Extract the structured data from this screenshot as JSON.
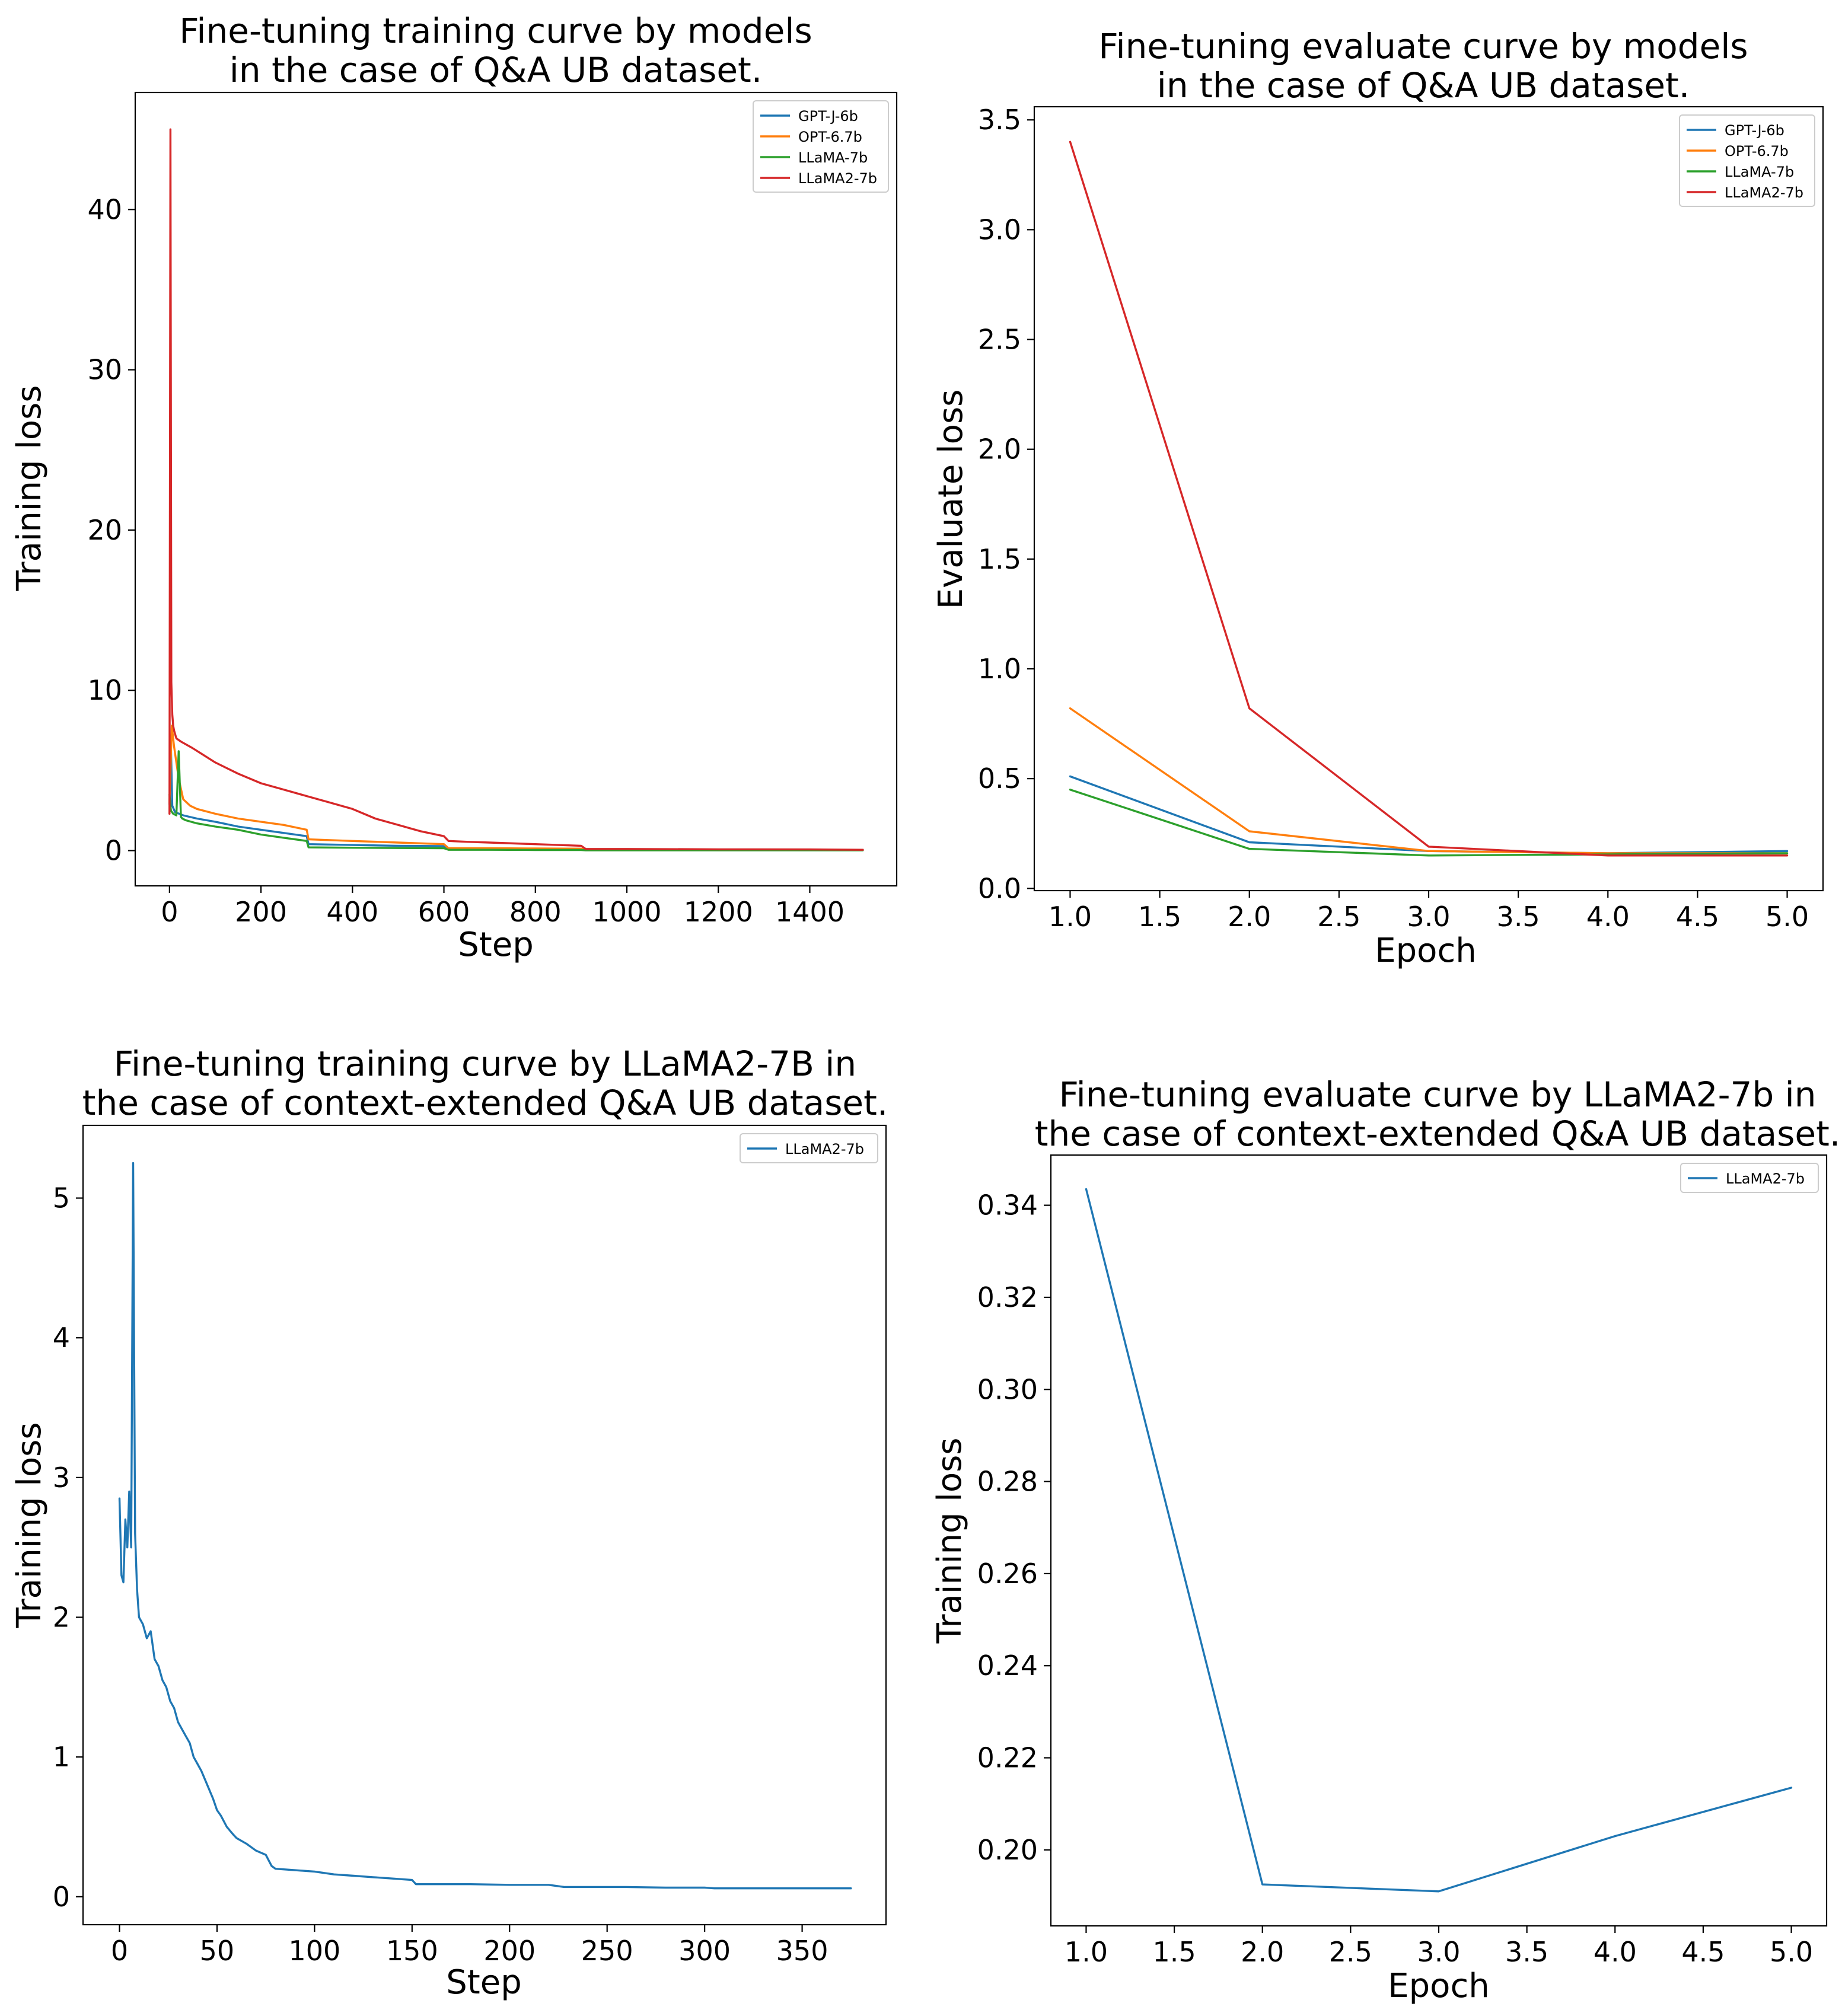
{
  "colors": {
    "GPT-J-6b": "#1f77b4",
    "OPT-6.7b": "#ff7f0e",
    "LLaMA-7b": "#2ca02c",
    "LLaMA2-7b": "#d62728",
    "single": "#1f77b4"
  },
  "chart_data": [
    {
      "id": "train_models",
      "type": "line",
      "title": [
        "Fine-tuning training curve by models",
        "in the case of Q&A UB dataset."
      ],
      "xlabel": "Step",
      "ylabel": "Training loss",
      "xlim": [
        -75,
        1590
      ],
      "ylim": [
        -2.2,
        47.3
      ],
      "xticks": [
        0,
        200,
        400,
        600,
        800,
        1000,
        1200,
        1400
      ],
      "yticks": [
        0,
        10,
        20,
        30,
        40
      ],
      "legend": "top-right",
      "series": [
        {
          "name": "GPT-J-6b",
          "x": [
            0,
            3,
            6,
            12,
            30,
            60,
            100,
            150,
            200,
            250,
            300,
            304,
            400,
            500,
            600,
            610,
            700,
            800,
            900,
            910,
            1000,
            1200,
            1400,
            1516
          ],
          "y": [
            2.9,
            6.5,
            2.8,
            2.4,
            2.2,
            2.0,
            1.8,
            1.5,
            1.3,
            1.1,
            0.9,
            0.4,
            0.35,
            0.3,
            0.28,
            0.12,
            0.12,
            0.11,
            0.11,
            0.05,
            0.05,
            0.05,
            0.05,
            0.05
          ]
        },
        {
          "name": "OPT-6.7b",
          "x": [
            0,
            5,
            10,
            20,
            30,
            45,
            60,
            100,
            150,
            200,
            250,
            300,
            304,
            400,
            500,
            600,
            610,
            700,
            800,
            900,
            910,
            1000,
            1200,
            1400,
            1516
          ],
          "y": [
            3.0,
            7.8,
            6.5,
            4.5,
            3.2,
            2.8,
            2.6,
            2.3,
            2.0,
            1.8,
            1.6,
            1.3,
            0.7,
            0.6,
            0.5,
            0.4,
            0.15,
            0.15,
            0.13,
            0.12,
            0.06,
            0.06,
            0.05,
            0.05,
            0.05
          ]
        },
        {
          "name": "LLaMA-7b",
          "x": [
            0,
            3,
            8,
            15,
            20,
            25,
            28,
            35,
            60,
            100,
            150,
            200,
            250,
            300,
            304,
            400,
            500,
            600,
            610,
            700,
            800,
            900,
            910,
            1000,
            1200,
            1400,
            1516
          ],
          "y": [
            3.5,
            2.5,
            2.3,
            2.2,
            6.2,
            2.1,
            2.0,
            1.9,
            1.7,
            1.5,
            1.3,
            1.0,
            0.8,
            0.6,
            0.2,
            0.18,
            0.16,
            0.15,
            0.05,
            0.05,
            0.04,
            0.04,
            0.02,
            0.02,
            0.02,
            0.02,
            0.02
          ]
        },
        {
          "name": "LLaMA2-7b",
          "x": [
            0,
            2,
            4,
            6,
            8,
            10,
            15,
            25,
            50,
            100,
            150,
            200,
            250,
            300,
            350,
            400,
            450,
            500,
            550,
            600,
            610,
            650,
            700,
            800,
            900,
            910,
            1000,
            1200,
            1400,
            1516
          ],
          "y": [
            2.3,
            45.0,
            10.5,
            8.5,
            7.8,
            7.5,
            7.0,
            6.8,
            6.4,
            5.5,
            4.8,
            4.2,
            3.8,
            3.4,
            3.0,
            2.6,
            2.0,
            1.6,
            1.2,
            0.9,
            0.6,
            0.55,
            0.5,
            0.4,
            0.3,
            0.1,
            0.1,
            0.08,
            0.07,
            0.05
          ]
        }
      ]
    },
    {
      "id": "eval_models",
      "type": "line",
      "title": [
        "Fine-tuning evaluate curve by models",
        "in the case of Q&A UB dataset."
      ],
      "xlabel": "Epoch",
      "ylabel": "Evaluate loss",
      "xlim": [
        0.8,
        5.2
      ],
      "ylim": [
        -0.01,
        3.56
      ],
      "xticks": [
        1.0,
        1.5,
        2.0,
        2.5,
        3.0,
        3.5,
        4.0,
        4.5,
        5.0
      ],
      "yticks": [
        0.0,
        0.5,
        1.0,
        1.5,
        2.0,
        2.5,
        3.0,
        3.5
      ],
      "legend": "top-right",
      "series": [
        {
          "name": "GPT-J-6b",
          "x": [
            1,
            2,
            3,
            4,
            5
          ],
          "y": [
            0.51,
            0.21,
            0.17,
            0.16,
            0.17
          ]
        },
        {
          "name": "OPT-6.7b",
          "x": [
            1,
            2,
            3,
            4,
            5
          ],
          "y": [
            0.82,
            0.26,
            0.17,
            0.16,
            0.16
          ]
        },
        {
          "name": "LLaMA-7b",
          "x": [
            1,
            2,
            3,
            4,
            5
          ],
          "y": [
            0.45,
            0.18,
            0.15,
            0.155,
            0.16
          ]
        },
        {
          "name": "LLaMA2-7b",
          "x": [
            1,
            2,
            3,
            4,
            5
          ],
          "y": [
            3.4,
            0.82,
            0.19,
            0.15,
            0.15
          ]
        }
      ]
    },
    {
      "id": "train_ctx",
      "type": "line",
      "title": [
        "Fine-tuning training curve by LLaMA2-7B in",
        "the case of context-extended Q&A UB dataset."
      ],
      "xlabel": "Step",
      "ylabel": "Training loss",
      "xlim": [
        -18.7,
        393
      ],
      "ylim": [
        -0.2,
        5.52
      ],
      "xticks": [
        0,
        50,
        100,
        150,
        200,
        250,
        300,
        350
      ],
      "yticks": [
        0,
        1,
        2,
        3,
        4,
        5
      ],
      "legend": "top-right",
      "series": [
        {
          "name": "LLaMA2-7b",
          "x": [
            0,
            1,
            2,
            3,
            4,
            5,
            6,
            7,
            8,
            9,
            10,
            12,
            14,
            16,
            18,
            20,
            22,
            24,
            26,
            28,
            30,
            32,
            34,
            36,
            38,
            40,
            42,
            45,
            48,
            50,
            52,
            55,
            58,
            60,
            65,
            70,
            75,
            78,
            80,
            90,
            100,
            110,
            120,
            130,
            140,
            150,
            152,
            160,
            180,
            200,
            220,
            228,
            240,
            260,
            280,
            300,
            305,
            320,
            340,
            360,
            375
          ],
          "y": [
            2.85,
            2.3,
            2.25,
            2.7,
            2.5,
            2.9,
            2.5,
            5.25,
            2.6,
            2.2,
            2.0,
            1.95,
            1.85,
            1.9,
            1.7,
            1.65,
            1.55,
            1.5,
            1.4,
            1.35,
            1.25,
            1.2,
            1.15,
            1.1,
            1.0,
            0.95,
            0.9,
            0.8,
            0.7,
            0.62,
            0.58,
            0.5,
            0.45,
            0.42,
            0.38,
            0.33,
            0.3,
            0.22,
            0.2,
            0.19,
            0.18,
            0.16,
            0.15,
            0.14,
            0.13,
            0.12,
            0.09,
            0.09,
            0.09,
            0.085,
            0.085,
            0.07,
            0.07,
            0.07,
            0.065,
            0.065,
            0.06,
            0.06,
            0.06,
            0.06,
            0.06
          ]
        }
      ]
    },
    {
      "id": "eval_ctx",
      "type": "line",
      "title": [
        "Fine-tuning evaluate curve by LLaMA2-7b in",
        "the case of context-extended Q&A UB dataset."
      ],
      "xlabel": "Epoch",
      "ylabel": "Training loss",
      "xlim": [
        0.8,
        5.2
      ],
      "ylim": [
        0.1835,
        0.3509
      ],
      "xticks": [
        1.0,
        1.5,
        2.0,
        2.5,
        3.0,
        3.5,
        4.0,
        4.5,
        5.0
      ],
      "yticks": [
        0.2,
        0.22,
        0.24,
        0.26,
        0.28,
        0.3,
        0.32,
        0.34
      ],
      "legend": "top-right",
      "series": [
        {
          "name": "LLaMA2-7b",
          "x": [
            1,
            2,
            3,
            4,
            5
          ],
          "y": [
            0.3435,
            0.1925,
            0.191,
            0.203,
            0.2135
          ]
        }
      ]
    }
  ]
}
